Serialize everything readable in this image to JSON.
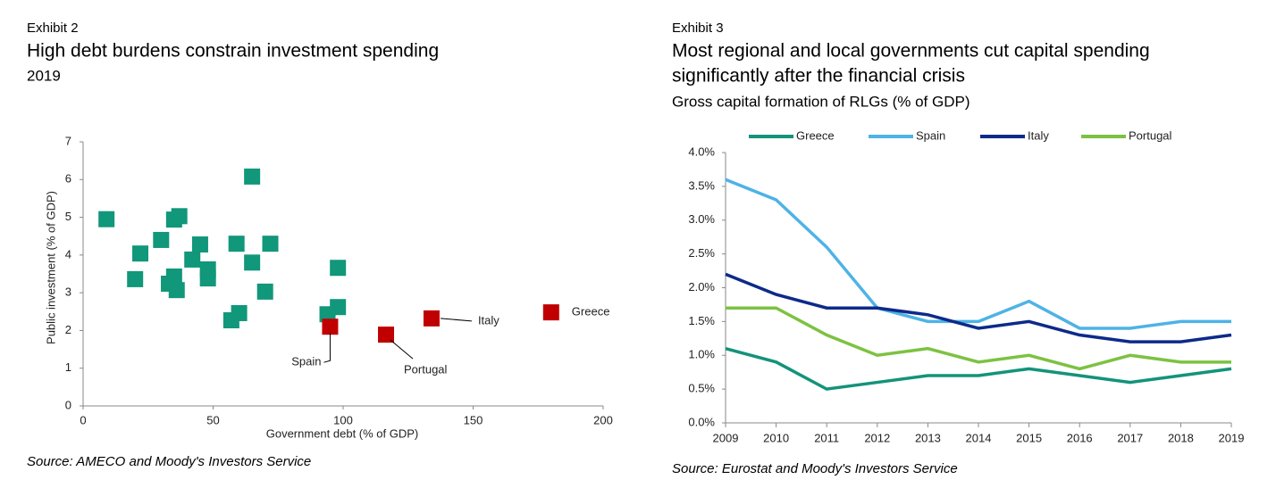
{
  "chart_data": [
    {
      "type": "scatter",
      "exhibit": "Exhibit 2",
      "title": "High debt burdens constrain investment spending",
      "subtitle": "2019",
      "x_label": "Government debt (% of GDP)",
      "y_label": "Public investment (% of GDP)",
      "xlim": [
        0,
        200
      ],
      "xticks": [
        0,
        50,
        100,
        150,
        200
      ],
      "ylim": [
        0,
        7
      ],
      "yticks": [
        0,
        1,
        2,
        3,
        4,
        5,
        6,
        7
      ],
      "series": [
        {
          "color": "#11977a",
          "x": [
            9,
            22,
            20,
            30,
            35,
            37,
            35,
            33,
            36,
            42,
            45,
            48,
            48,
            59,
            65,
            65,
            72,
            70,
            60,
            57,
            98,
            98,
            94
          ],
          "values": [
            4.95,
            4.04,
            3.36,
            4.4,
            4.94,
            5.03,
            3.43,
            3.24,
            3.07,
            3.88,
            4.28,
            3.62,
            3.38,
            4.3,
            6.08,
            3.8,
            4.3,
            3.03,
            2.46,
            2.27,
            3.66,
            2.62,
            2.43
          ]
        },
        {
          "color": "#c00000",
          "x": [
            95,
            116.5,
            134,
            180
          ],
          "values": [
            2.1,
            1.89,
            2.32,
            2.48
          ],
          "labels": [
            "Spain",
            "Portugal",
            "Italy",
            "Greece"
          ]
        }
      ],
      "source": "Source: AMECO and Moody's Investors Service"
    },
    {
      "type": "line",
      "exhibit": "Exhibit 3",
      "title": [
        "Most regional and local governments cut capital spending",
        "significantly after the financial crisis"
      ],
      "subtitle": "Gross capital formation of RLGs (% of GDP)",
      "categories": [
        "2009",
        "2010",
        "2011",
        "2012",
        "2013",
        "2014",
        "2015",
        "2016",
        "2017",
        "2018",
        "2019"
      ],
      "ylim": [
        0,
        4
      ],
      "yticks": [
        {
          "value": 0,
          "label": "0.0%"
        },
        {
          "value": 0.5,
          "label": "0.5%"
        },
        {
          "value": 1,
          "label": "1.0%"
        },
        {
          "value": 1.5,
          "label": "1.5%"
        },
        {
          "value": 2,
          "label": "2.0%"
        },
        {
          "value": 2.5,
          "label": "2.5%"
        },
        {
          "value": 3,
          "label": "3.0%"
        },
        {
          "value": 3.5,
          "label": "3.5%"
        },
        {
          "value": 4,
          "label": "4.0%"
        }
      ],
      "series": [
        {
          "name": "Greece",
          "color": "#13937a",
          "values": [
            1.1,
            0.9,
            0.5,
            0.6,
            0.7,
            0.7,
            0.8,
            0.7,
            0.6,
            0.7,
            0.8
          ]
        },
        {
          "name": "Spain",
          "color": "#4db3e6",
          "values": [
            3.6,
            3.3,
            2.6,
            1.7,
            1.5,
            1.5,
            1.8,
            1.4,
            1.4,
            1.5,
            1.5
          ]
        },
        {
          "name": "Italy",
          "color": "#0d2a8a",
          "values": [
            2.2,
            1.9,
            1.7,
            1.7,
            1.6,
            1.4,
            1.5,
            1.3,
            1.2,
            1.2,
            1.3
          ]
        },
        {
          "name": "Portugal",
          "color": "#7cc242",
          "values": [
            1.7,
            1.7,
            1.3,
            1.0,
            1.1,
            0.9,
            1.0,
            0.8,
            1.0,
            0.9,
            0.9
          ]
        }
      ],
      "source": "Source: Eurostat and Moody's Investors Service"
    }
  ]
}
